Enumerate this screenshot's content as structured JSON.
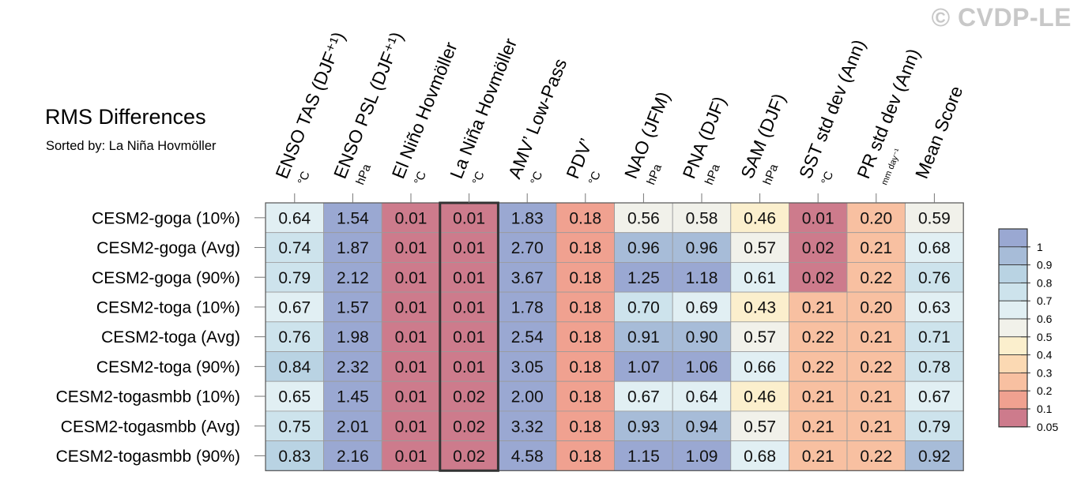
{
  "watermark": "© CVDP-LE",
  "title": "RMS Differences",
  "subtitle": "Sorted by: La Niña Hovmöller",
  "chart_data": {
    "type": "heatmap",
    "title": "RMS Differences",
    "subtitle": "Sorted by: La Niña Hovmöller",
    "columns": [
      {
        "label": "ENSO TAS (DJF⁺¹)",
        "unit": "°C"
      },
      {
        "label": "ENSO PSL (DJF⁺¹)",
        "unit": "hPa"
      },
      {
        "label": "El Niño Hovmöller",
        "unit": "°C"
      },
      {
        "label": "La Niña Hovmöller",
        "unit": "°C"
      },
      {
        "label": "AMV’ Low-Pass",
        "unit": "°C"
      },
      {
        "label": "PDV’",
        "unit": "°C"
      },
      {
        "label": "NAO (JFM)",
        "unit": "hPa"
      },
      {
        "label": "PNA (DJF)",
        "unit": "hPa"
      },
      {
        "label": "SAM (DJF)",
        "unit": "hPa"
      },
      {
        "label": "SST std dev (Ann)",
        "unit": "°C"
      },
      {
        "label": "PR std dev (Ann)",
        "unit": "mm day⁻¹"
      },
      {
        "label": "Mean Score",
        "unit": ""
      }
    ],
    "rows": [
      "CESM2-goga (10%)",
      "CESM2-goga (Avg)",
      "CESM2-goga (90%)",
      "CESM2-toga (10%)",
      "CESM2-toga (Avg)",
      "CESM2-toga (90%)",
      "CESM2-togasmbb (10%)",
      "CESM2-togasmbb (Avg)",
      "CESM2-togasmbb (90%)"
    ],
    "values": [
      [
        "0.64",
        "1.54",
        "0.01",
        "0.01",
        "1.83",
        "0.18",
        "0.56",
        "0.58",
        "0.46",
        "0.01",
        "0.20",
        "0.59"
      ],
      [
        "0.74",
        "1.87",
        "0.01",
        "0.01",
        "2.70",
        "0.18",
        "0.96",
        "0.96",
        "0.57",
        "0.02",
        "0.21",
        "0.68"
      ],
      [
        "0.79",
        "2.12",
        "0.01",
        "0.01",
        "3.67",
        "0.18",
        "1.25",
        "1.18",
        "0.61",
        "0.02",
        "0.22",
        "0.76"
      ],
      [
        "0.67",
        "1.57",
        "0.01",
        "0.01",
        "1.78",
        "0.18",
        "0.70",
        "0.69",
        "0.43",
        "0.21",
        "0.20",
        "0.63"
      ],
      [
        "0.76",
        "1.98",
        "0.01",
        "0.01",
        "2.54",
        "0.18",
        "0.91",
        "0.90",
        "0.57",
        "0.22",
        "0.21",
        "0.71"
      ],
      [
        "0.84",
        "2.32",
        "0.01",
        "0.01",
        "3.05",
        "0.18",
        "1.07",
        "1.06",
        "0.66",
        "0.22",
        "0.22",
        "0.78"
      ],
      [
        "0.65",
        "1.45",
        "0.01",
        "0.02",
        "2.00",
        "0.18",
        "0.67",
        "0.64",
        "0.46",
        "0.21",
        "0.21",
        "0.67"
      ],
      [
        "0.75",
        "2.01",
        "0.01",
        "0.02",
        "3.32",
        "0.18",
        "0.93",
        "0.94",
        "0.57",
        "0.21",
        "0.21",
        "0.79"
      ],
      [
        "0.83",
        "2.16",
        "0.01",
        "0.02",
        "4.58",
        "0.18",
        "1.15",
        "1.09",
        "0.68",
        "0.21",
        "0.22",
        "0.92"
      ]
    ],
    "highlighted_column": 3,
    "colorbar": {
      "labels": [
        "1",
        "0.9",
        "0.8",
        "0.7",
        "0.6",
        "0.5",
        "0.4",
        "0.3",
        "0.2",
        "0.1",
        "0.05"
      ],
      "colors": [
        "#9aa8d2",
        "#a7bcd8",
        "#b9d3e3",
        "#cde3ec",
        "#e1eff3",
        "#f1f1ea",
        "#fbefcd",
        "#fbd9b3",
        "#f8c0a1",
        "#f0a190",
        "#cd7b8c"
      ],
      "placement": "right"
    },
    "cell_colors": {
      "gt1": "#9aa8d2",
      "c09": "#a7bcd8",
      "c08": "#b9d3e3",
      "c07": "#cde3ec",
      "c06": "#e1eff3",
      "c05": "#f1f1ea",
      "c04": "#fbefcd",
      "c03": "#fbd9b3",
      "c02": "#f8c0a1",
      "c01": "#f0a190",
      "lt005": "#cd7b8c"
    }
  }
}
